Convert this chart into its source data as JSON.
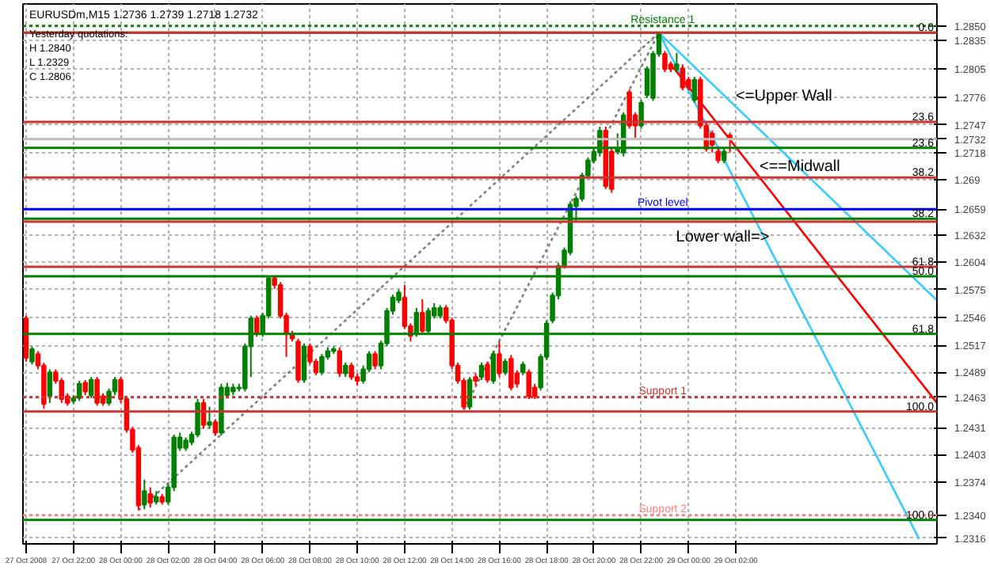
{
  "chart_data": {
    "type": "candlestick",
    "title": "EURUSDm,M15  1.2736 1.2739 1.2718 1.2732",
    "annotations": [
      "Yesterday quotations:",
      "H 1.2840",
      "L 1.2329",
      "C 1.2806",
      {
        "text": "<=Upper Wall",
        "x": "2008-10-29T02:00",
        "y": 1.2766
      },
      {
        "text": "<==Midwall",
        "x": "2008-10-29T03:00",
        "y": 1.2692
      },
      {
        "text": "Lower wall=>",
        "x": "2008-10-29T03:25",
        "y": 1.2619
      },
      {
        "text": "0.0",
        "x": "2008-10-29T10:30",
        "y": 1.2843
      },
      {
        "text": "23.6",
        "x": "2008-10-29T10:30",
        "y": 1.275
      },
      {
        "text": "23.6",
        "x": "2008-10-29T10:30",
        "y": 1.2723
      },
      {
        "text": "38.2",
        "x": "2008-10-29T10:30",
        "y": 1.2692
      },
      {
        "text": "38.2",
        "x": "2008-10-29T10:30",
        "y": 1.2649
      },
      {
        "text": "61.8",
        "x": "2008-10-29T10:30",
        "y": 1.2599
      },
      {
        "text": "50.0",
        "x": "2008-10-29T10:30",
        "y": 1.2589
      },
      {
        "text": "61.8",
        "x": "2008-10-29T10:30",
        "y": 1.2529
      },
      {
        "text": "100.0",
        "x": "2008-10-29T10:30",
        "y": 1.2448
      },
      {
        "text": "100.0",
        "x": "2008-10-29T10:30",
        "y": 1.2335
      }
    ],
    "x": [
      "2008-10-27T20:00",
      "2008-10-27T20:15",
      "2008-10-27T20:30",
      "2008-10-27T20:45",
      "2008-10-27T21:00",
      "2008-10-27T21:15",
      "2008-10-27T21:30",
      "2008-10-27T21:45",
      "2008-10-27T22:00",
      "2008-10-27T22:15",
      "2008-10-27T22:30",
      "2008-10-27T22:45",
      "2008-10-27T23:00",
      "2008-10-27T23:15",
      "2008-10-27T23:30",
      "2008-10-27T23:45",
      "2008-10-28T00:00",
      "2008-10-28T00:15",
      "2008-10-28T00:30",
      "2008-10-28T00:45",
      "2008-10-28T01:00",
      "2008-10-28T01:15",
      "2008-10-28T01:30",
      "2008-10-28T01:45",
      "2008-10-28T02:00",
      "2008-10-28T02:15",
      "2008-10-28T02:30",
      "2008-10-28T02:45",
      "2008-10-28T03:00",
      "2008-10-28T03:15",
      "2008-10-28T03:30",
      "2008-10-28T03:45",
      "2008-10-28T04:00",
      "2008-10-28T04:15",
      "2008-10-28T04:30",
      "2008-10-28T04:45",
      "2008-10-28T05:00",
      "2008-10-28T05:15",
      "2008-10-28T05:30",
      "2008-10-28T05:45",
      "2008-10-28T06:00",
      "2008-10-28T06:15",
      "2008-10-28T06:30",
      "2008-10-28T06:45",
      "2008-10-28T07:00",
      "2008-10-28T07:15",
      "2008-10-28T07:30",
      "2008-10-28T07:45",
      "2008-10-28T08:00",
      "2008-10-28T08:15",
      "2008-10-28T08:30",
      "2008-10-28T08:45",
      "2008-10-28T09:00",
      "2008-10-28T09:15",
      "2008-10-28T09:30",
      "2008-10-28T09:45",
      "2008-10-28T10:00",
      "2008-10-28T10:15",
      "2008-10-28T10:30",
      "2008-10-28T10:45",
      "2008-10-28T11:00",
      "2008-10-28T11:15",
      "2008-10-28T11:30",
      "2008-10-28T11:45",
      "2008-10-28T12:00",
      "2008-10-28T12:15",
      "2008-10-28T12:30",
      "2008-10-28T12:45",
      "2008-10-28T13:00",
      "2008-10-28T13:15",
      "2008-10-28T13:30",
      "2008-10-28T13:45",
      "2008-10-28T14:00",
      "2008-10-28T14:15",
      "2008-10-28T14:30",
      "2008-10-28T14:45",
      "2008-10-28T15:00",
      "2008-10-28T15:15",
      "2008-10-28T15:30",
      "2008-10-28T15:45",
      "2008-10-28T16:00",
      "2008-10-28T16:15",
      "2008-10-28T16:30",
      "2008-10-28T16:45",
      "2008-10-28T17:00",
      "2008-10-28T17:15",
      "2008-10-28T17:30",
      "2008-10-28T17:45",
      "2008-10-28T18:00",
      "2008-10-28T18:15",
      "2008-10-28T18:30",
      "2008-10-28T18:45",
      "2008-10-28T19:00",
      "2008-10-28T19:15",
      "2008-10-28T19:30",
      "2008-10-28T19:45",
      "2008-10-28T20:00",
      "2008-10-28T20:15",
      "2008-10-28T20:30",
      "2008-10-28T20:45",
      "2008-10-28T21:00",
      "2008-10-28T21:15",
      "2008-10-28T21:30",
      "2008-10-28T21:45",
      "2008-10-28T22:00",
      "2008-10-28T22:15",
      "2008-10-28T22:30",
      "2008-10-28T22:45",
      "2008-10-28T23:00",
      "2008-10-28T23:15",
      "2008-10-28T23:30",
      "2008-10-28T23:45",
      "2008-10-29T00:00",
      "2008-10-29T00:15",
      "2008-10-29T00:30",
      "2008-10-29T00:45",
      "2008-10-29T01:00",
      "2008-10-29T01:15",
      "2008-10-29T01:30",
      "2008-10-29T01:45"
    ],
    "ohlc": [
      [
        1.2545,
        1.2548,
        1.25,
        1.2504
      ],
      [
        1.25,
        1.2516,
        1.2497,
        1.2513
      ],
      [
        1.2508,
        1.2511,
        1.2492,
        1.2496
      ],
      [
        1.2496,
        1.2499,
        1.2451,
        1.2456
      ],
      [
        1.2464,
        1.2492,
        1.2457,
        1.2489
      ],
      [
        1.2489,
        1.2492,
        1.2477,
        1.248
      ],
      [
        1.248,
        1.2483,
        1.2457,
        1.2461
      ],
      [
        1.2464,
        1.2467,
        1.2454,
        1.2457
      ],
      [
        1.2459,
        1.2465,
        1.2456,
        1.2462
      ],
      [
        1.2462,
        1.248,
        1.2459,
        1.2477
      ],
      [
        1.2478,
        1.2481,
        1.2465,
        1.2469
      ],
      [
        1.2465,
        1.2484,
        1.2462,
        1.2481
      ],
      [
        1.2481,
        1.2484,
        1.2454,
        1.2457
      ],
      [
        1.2464,
        1.2467,
        1.2454,
        1.2457
      ],
      [
        1.2457,
        1.2472,
        1.2454,
        1.2469
      ],
      [
        1.2469,
        1.2484,
        1.2465,
        1.2481
      ],
      [
        1.2481,
        1.2484,
        1.2457,
        1.2461
      ],
      [
        1.2461,
        1.2464,
        1.2426,
        1.2429
      ],
      [
        1.2429,
        1.2432,
        1.2405,
        1.2408
      ],
      [
        1.241,
        1.2413,
        1.2345,
        1.235
      ],
      [
        1.2351,
        1.2377,
        1.2346,
        1.2365
      ],
      [
        1.2362,
        1.2369,
        1.2348,
        1.2353
      ],
      [
        1.2354,
        1.2365,
        1.2351,
        1.2359
      ],
      [
        1.2359,
        1.2362,
        1.2351,
        1.2354
      ],
      [
        1.2354,
        1.2372,
        1.2351,
        1.2369
      ],
      [
        1.2369,
        1.2424,
        1.2365,
        1.2421
      ],
      [
        1.241,
        1.2426,
        1.2407,
        1.2421
      ],
      [
        1.241,
        1.2421,
        1.2407,
        1.2418
      ],
      [
        1.2416,
        1.2427,
        1.2413,
        1.2424
      ],
      [
        1.2424,
        1.2461,
        1.2421,
        1.2457
      ],
      [
        1.2457,
        1.2461,
        1.243,
        1.2434
      ],
      [
        1.2434,
        1.2453,
        1.243,
        1.2437
      ],
      [
        1.2437,
        1.244,
        1.2423,
        1.2426
      ],
      [
        1.2426,
        1.2477,
        1.2423,
        1.2473
      ],
      [
        1.2465,
        1.2478,
        1.2462,
        1.2473
      ],
      [
        1.2469,
        1.2477,
        1.2465,
        1.2473
      ],
      [
        1.2472,
        1.2477,
        1.2469,
        1.2473
      ],
      [
        1.2472,
        1.2519,
        1.2469,
        1.2516
      ],
      [
        1.2516,
        1.2548,
        1.2484,
        1.2545
      ],
      [
        1.2545,
        1.2548,
        1.2526,
        1.2529
      ],
      [
        1.2529,
        1.2551,
        1.2526,
        1.2548
      ],
      [
        1.2548,
        1.2589,
        1.2545,
        1.2587
      ],
      [
        1.2587,
        1.2589,
        1.2576,
        1.258
      ],
      [
        1.258,
        1.2583,
        1.2545,
        1.2548
      ],
      [
        1.2548,
        1.2551,
        1.2505,
        1.2529
      ],
      [
        1.2529,
        1.2532,
        1.2521,
        1.2524
      ],
      [
        1.2521,
        1.2524,
        1.2478,
        1.2481
      ],
      [
        1.2481,
        1.2519,
        1.2478,
        1.2516
      ],
      [
        1.2516,
        1.2519,
        1.2497,
        1.25
      ],
      [
        1.25,
        1.2503,
        1.2486,
        1.2489
      ],
      [
        1.2489,
        1.2508,
        1.2486,
        1.2505
      ],
      [
        1.2505,
        1.2515,
        1.2502,
        1.2511
      ],
      [
        1.2511,
        1.2516,
        1.2508,
        1.2513
      ],
      [
        1.2511,
        1.2515,
        1.2484,
        1.2488
      ],
      [
        1.2488,
        1.2499,
        1.2484,
        1.2496
      ],
      [
        1.2496,
        1.2499,
        1.2481,
        1.2484
      ],
      [
        1.2484,
        1.2488,
        1.2475,
        1.248
      ],
      [
        1.248,
        1.2496,
        1.2477,
        1.2492
      ],
      [
        1.2492,
        1.2511,
        1.2489,
        1.2508
      ],
      [
        1.2508,
        1.2511,
        1.2492,
        1.2496
      ],
      [
        1.2496,
        1.2522,
        1.2492,
        1.2519
      ],
      [
        1.2519,
        1.2556,
        1.2516,
        1.2553
      ],
      [
        1.2553,
        1.257,
        1.2549,
        1.2567
      ],
      [
        1.2564,
        1.2575,
        1.2561,
        1.2572
      ],
      [
        1.2567,
        1.258,
        1.2534,
        1.2537
      ],
      [
        1.2537,
        1.254,
        1.2521,
        1.2527
      ],
      [
        1.2529,
        1.2556,
        1.2526,
        1.2551
      ],
      [
        1.2551,
        1.2565,
        1.2529,
        1.2532
      ],
      [
        1.2532,
        1.2556,
        1.2529,
        1.2553
      ],
      [
        1.2548,
        1.2561,
        1.2545,
        1.2556
      ],
      [
        1.2548,
        1.2559,
        1.2545,
        1.2556
      ],
      [
        1.2556,
        1.2559,
        1.254,
        1.2543
      ],
      [
        1.2543,
        1.2546,
        1.2492,
        1.2496
      ],
      [
        1.2496,
        1.2499,
        1.2477,
        1.248
      ],
      [
        1.248,
        1.2483,
        1.245,
        1.2453
      ],
      [
        1.2453,
        1.2484,
        1.245,
        1.2481
      ],
      [
        1.2484,
        1.2488,
        1.2475,
        1.248
      ],
      [
        1.2484,
        1.2499,
        1.2481,
        1.2496
      ],
      [
        1.2497,
        1.25,
        1.2478,
        1.2481
      ],
      [
        1.248,
        1.2511,
        1.2477,
        1.2508
      ],
      [
        1.2508,
        1.2521,
        1.2484,
        1.2488
      ],
      [
        1.2489,
        1.2503,
        1.2486,
        1.25
      ],
      [
        1.2503,
        1.2507,
        1.247,
        1.2473
      ],
      [
        1.2488,
        1.2491,
        1.2473,
        1.2477
      ],
      [
        1.2489,
        1.25,
        1.2486,
        1.2497
      ],
      [
        1.2489,
        1.2492,
        1.2461,
        1.2464
      ],
      [
        1.2473,
        1.2477,
        1.2461,
        1.2464
      ],
      [
        1.2473,
        1.2508,
        1.247,
        1.2505
      ],
      [
        1.2505,
        1.2543,
        1.2502,
        1.254
      ],
      [
        1.2543,
        1.2572,
        1.254,
        1.2569
      ],
      [
        1.2569,
        1.2603,
        1.2565,
        1.26
      ],
      [
        1.26,
        1.2619,
        1.2597,
        1.2616
      ],
      [
        1.2614,
        1.2667,
        1.2611,
        1.2664
      ],
      [
        1.2662,
        1.2673,
        1.2646,
        1.267
      ],
      [
        1.267,
        1.2697,
        1.2667,
        1.2694
      ],
      [
        1.2694,
        1.2713,
        1.2691,
        1.271
      ],
      [
        1.271,
        1.2722,
        1.2707,
        1.2719
      ],
      [
        1.2718,
        1.2745,
        1.2714,
        1.2741
      ],
      [
        1.2741,
        1.2745,
        1.268,
        1.2683
      ],
      [
        1.2719,
        1.2722,
        1.2676,
        1.268
      ],
      [
        1.2719,
        1.2738,
        1.2716,
        1.2722
      ],
      [
        1.2718,
        1.276,
        1.2714,
        1.2757
      ],
      [
        1.2781,
        1.2784,
        1.2743,
        1.2746
      ],
      [
        1.2757,
        1.276,
        1.2733,
        1.2746
      ],
      [
        1.2746,
        1.2773,
        1.2743,
        1.277
      ],
      [
        1.2778,
        1.2808,
        1.2775,
        1.2805
      ],
      [
        1.2775,
        1.2824,
        1.2772,
        1.2821
      ],
      [
        1.2821,
        1.2843,
        1.2818,
        1.2841
      ],
      [
        1.2821,
        1.2824,
        1.2802,
        1.2805
      ],
      [
        1.281,
        1.2813,
        1.2802,
        1.2805
      ],
      [
        1.2805,
        1.2822,
        1.2802,
        1.281
      ],
      [
        1.2806,
        1.281,
        1.2783,
        1.2786
      ],
      [
        1.2794,
        1.2797,
        1.2783,
        1.2786
      ],
      [
        1.2773,
        1.2797,
        1.277,
        1.2794
      ],
      [
        1.2794,
        1.2797,
        1.2743,
        1.2746
      ],
      [
        1.2746,
        1.2749,
        1.2719,
        1.2722
      ],
      [
        1.2738,
        1.2741,
        1.2718,
        1.2726
      ],
      [
        1.2719,
        1.2722,
        1.2707,
        1.271
      ],
      [
        1.271,
        1.2722,
        1.2707,
        1.2719
      ],
      [
        1.2736,
        1.2739,
        1.2718,
        1.2732
      ]
    ],
    "colors": [
      "#ff0000",
      "#008000",
      "#ff0000",
      "#ff0000",
      "#008000",
      "#ff0000",
      "#ff0000",
      "#ff0000",
      "#008000",
      "#008000",
      "#ff0000",
      "#008000",
      "#ff0000",
      "#ff0000",
      "#008000",
      "#008000",
      "#ff0000",
      "#ff0000",
      "#ff0000",
      "#ff0000",
      "#008000",
      "#ff0000",
      "#008000",
      "#ff0000",
      "#008000",
      "#008000",
      "#008000",
      "#008000",
      "#008000",
      "#008000",
      "#ff0000",
      "#008000",
      "#ff0000",
      "#008000",
      "#008000",
      "#008000",
      "#008000",
      "#008000",
      "#008000",
      "#ff0000",
      "#008000",
      "#008000",
      "#ff0000",
      "#ff0000",
      "#ff0000",
      "#ff0000",
      "#ff0000",
      "#008000",
      "#ff0000",
      "#ff0000",
      "#008000",
      "#008000",
      "#008000",
      "#ff0000",
      "#008000",
      "#ff0000",
      "#ff0000",
      "#008000",
      "#008000",
      "#ff0000",
      "#008000",
      "#008000",
      "#008000",
      "#008000",
      "#ff0000",
      "#ff0000",
      "#008000",
      "#ff0000",
      "#008000",
      "#008000",
      "#008000",
      "#ff0000",
      "#ff0000",
      "#ff0000",
      "#ff0000",
      "#008000",
      "#ff0000",
      "#008000",
      "#ff0000",
      "#008000",
      "#ff0000",
      "#008000",
      "#ff0000",
      "#ff0000",
      "#008000",
      "#ff0000",
      "#ff0000",
      "#008000",
      "#008000",
      "#008000",
      "#008000",
      "#008000",
      "#008000",
      "#008000",
      "#008000",
      "#008000",
      "#008000",
      "#008000",
      "#ff0000",
      "#ff0000",
      "#008000",
      "#008000",
      "#ff0000",
      "#ff0000",
      "#008000",
      "#008000",
      "#008000",
      "#008000",
      "#ff0000",
      "#ff0000",
      "#008000",
      "#ff0000",
      "#ff0000",
      "#008000",
      "#ff0000",
      "#ff0000",
      "#ff0000",
      "#ff0000",
      "#008000",
      "#ff0000"
    ],
    "series": [
      {
        "type": "line",
        "color": "#808080",
        "line_style": "dotted",
        "x": [
          "2008-10-28T00:45",
          "2008-10-28T22:45"
        ],
        "values": [
          1.2345,
          1.2843
        ]
      },
      {
        "type": "line",
        "color": "#808080",
        "line_style": "dotted",
        "x": [
          "2008-10-28T14:30",
          "2008-10-28T22:45"
        ],
        "values": [
          1.245,
          1.2843
        ]
      },
      {
        "type": "line",
        "color": "#33ccff",
        "line_style": "solid",
        "x": [
          "2008-10-28T22:45",
          "2008-10-29T10:30"
        ],
        "values": [
          1.2843,
          1.2564
        ]
      },
      {
        "type": "line",
        "color": "#33ccff",
        "line_style": "solid",
        "x": [
          "2008-10-28T22:45",
          "2008-10-29T09:45"
        ],
        "values": [
          1.2843,
          1.2315
        ]
      },
      {
        "type": "line",
        "color": "#ff0000",
        "line_style": "solid",
        "x": [
          "2008-10-28T23:15",
          "2008-10-29T10:30"
        ],
        "values": [
          1.281,
          1.2457
        ]
      }
    ],
    "ref_lines": [
      {
        "axis": "y",
        "value": 1.2843,
        "label": null,
        "color": "#008000",
        "line_style": "solid"
      },
      {
        "axis": "y",
        "value": 1.2723,
        "label": null,
        "color": "#008000",
        "line_style": "solid"
      },
      {
        "axis": "y",
        "value": 1.2649,
        "label": null,
        "color": "#008000",
        "line_style": "solid"
      },
      {
        "axis": "y",
        "value": 1.2589,
        "label": null,
        "color": "#008000",
        "line_style": "solid"
      },
      {
        "axis": "y",
        "value": 1.2529,
        "label": null,
        "color": "#008000",
        "line_style": "solid"
      },
      {
        "axis": "y",
        "value": 1.2335,
        "label": null,
        "color": "#008000",
        "line_style": "solid"
      },
      {
        "axis": "y",
        "value": 1.2843,
        "label": null,
        "color": "#cc3333",
        "line_style": "solid"
      },
      {
        "axis": "y",
        "value": 1.275,
        "label": null,
        "color": "#cc3333",
        "line_style": "solid"
      },
      {
        "axis": "y",
        "value": 1.2692,
        "label": null,
        "color": "#cc3333",
        "line_style": "solid"
      },
      {
        "axis": "y",
        "value": 1.2646,
        "label": null,
        "color": "#cc3333",
        "line_style": "solid"
      },
      {
        "axis": "y",
        "value": 1.2599,
        "label": null,
        "color": "#cc3333",
        "line_style": "solid"
      },
      {
        "axis": "y",
        "value": 1.2448,
        "label": null,
        "color": "#cc3333",
        "line_style": "solid"
      },
      {
        "axis": "y",
        "value": 1.285,
        "label": "Resistance 1",
        "color": "#008000",
        "line_style": "dotted"
      },
      {
        "axis": "y",
        "value": 1.2659,
        "label": "Pivot level",
        "color": "#0000ff",
        "line_style": "solid"
      },
      {
        "axis": "y",
        "value": 1.2463,
        "label": "Support 1",
        "color": "#cc3333",
        "line_style": "dotted"
      },
      {
        "axis": "y",
        "value": 1.234,
        "label": "Support 2",
        "color": "#ff8080",
        "line_style": "dotted"
      },
      {
        "axis": "y",
        "value": 1.2732,
        "label": null,
        "color": "#c0c0c0",
        "line_style": "solid"
      }
    ],
    "xlim": [
      "2008-10-27T19:52",
      "2008-10-29T10:30"
    ],
    "xticks": [
      {
        "value": "2008-10-27T20:00",
        "label": "27 Oct 2008"
      },
      {
        "value": "2008-10-27T22:00",
        "label": "27 Oct 22:00"
      },
      {
        "value": "2008-10-28T00:00",
        "label": "28 Oct 00:00"
      },
      {
        "value": "2008-10-28T02:00",
        "label": "28 Oct 02:00"
      },
      {
        "value": "2008-10-28T04:00",
        "label": "28 Oct 04:00"
      },
      {
        "value": "2008-10-28T06:00",
        "label": "28 Oct 06:00"
      },
      {
        "value": "2008-10-28T08:00",
        "label": "28 Oct 08:00"
      },
      {
        "value": "2008-10-28T10:00",
        "label": "28 Oct 10:00"
      },
      {
        "value": "2008-10-28T12:00",
        "label": "28 Oct 12:00"
      },
      {
        "value": "2008-10-28T14:00",
        "label": "28 Oct 14:00"
      },
      {
        "value": "2008-10-28T16:00",
        "label": "28 Oct 16:00"
      },
      {
        "value": "2008-10-28T18:00",
        "label": "28 Oct 18:00"
      },
      {
        "value": "2008-10-28T20:00",
        "label": "28 Oct 20:00"
      },
      {
        "value": "2008-10-28T22:00",
        "label": "28 Oct 22:00"
      },
      {
        "value": "2008-10-29T00:00",
        "label": "29 Oct 00:00"
      },
      {
        "value": "2008-10-29T02:00",
        "label": "29 Oct 02:00"
      }
    ],
    "ylim": [
      1.231,
      1.2873
    ],
    "yticks": [
      {
        "value": 1.285,
        "label": "1.2850"
      },
      1.2835,
      1.2805,
      1.2776,
      1.2747,
      1.2732,
      1.2718,
      1.269,
      1.2659,
      1.2632,
      1.2604,
      1.2575,
      1.2546,
      1.2517,
      1.2489,
      1.2463,
      1.2431,
      1.2403,
      1.2374,
      {
        "value": 1.234,
        "label": "1.2340"
      },
      1.2316
    ],
    "grid": true
  }
}
